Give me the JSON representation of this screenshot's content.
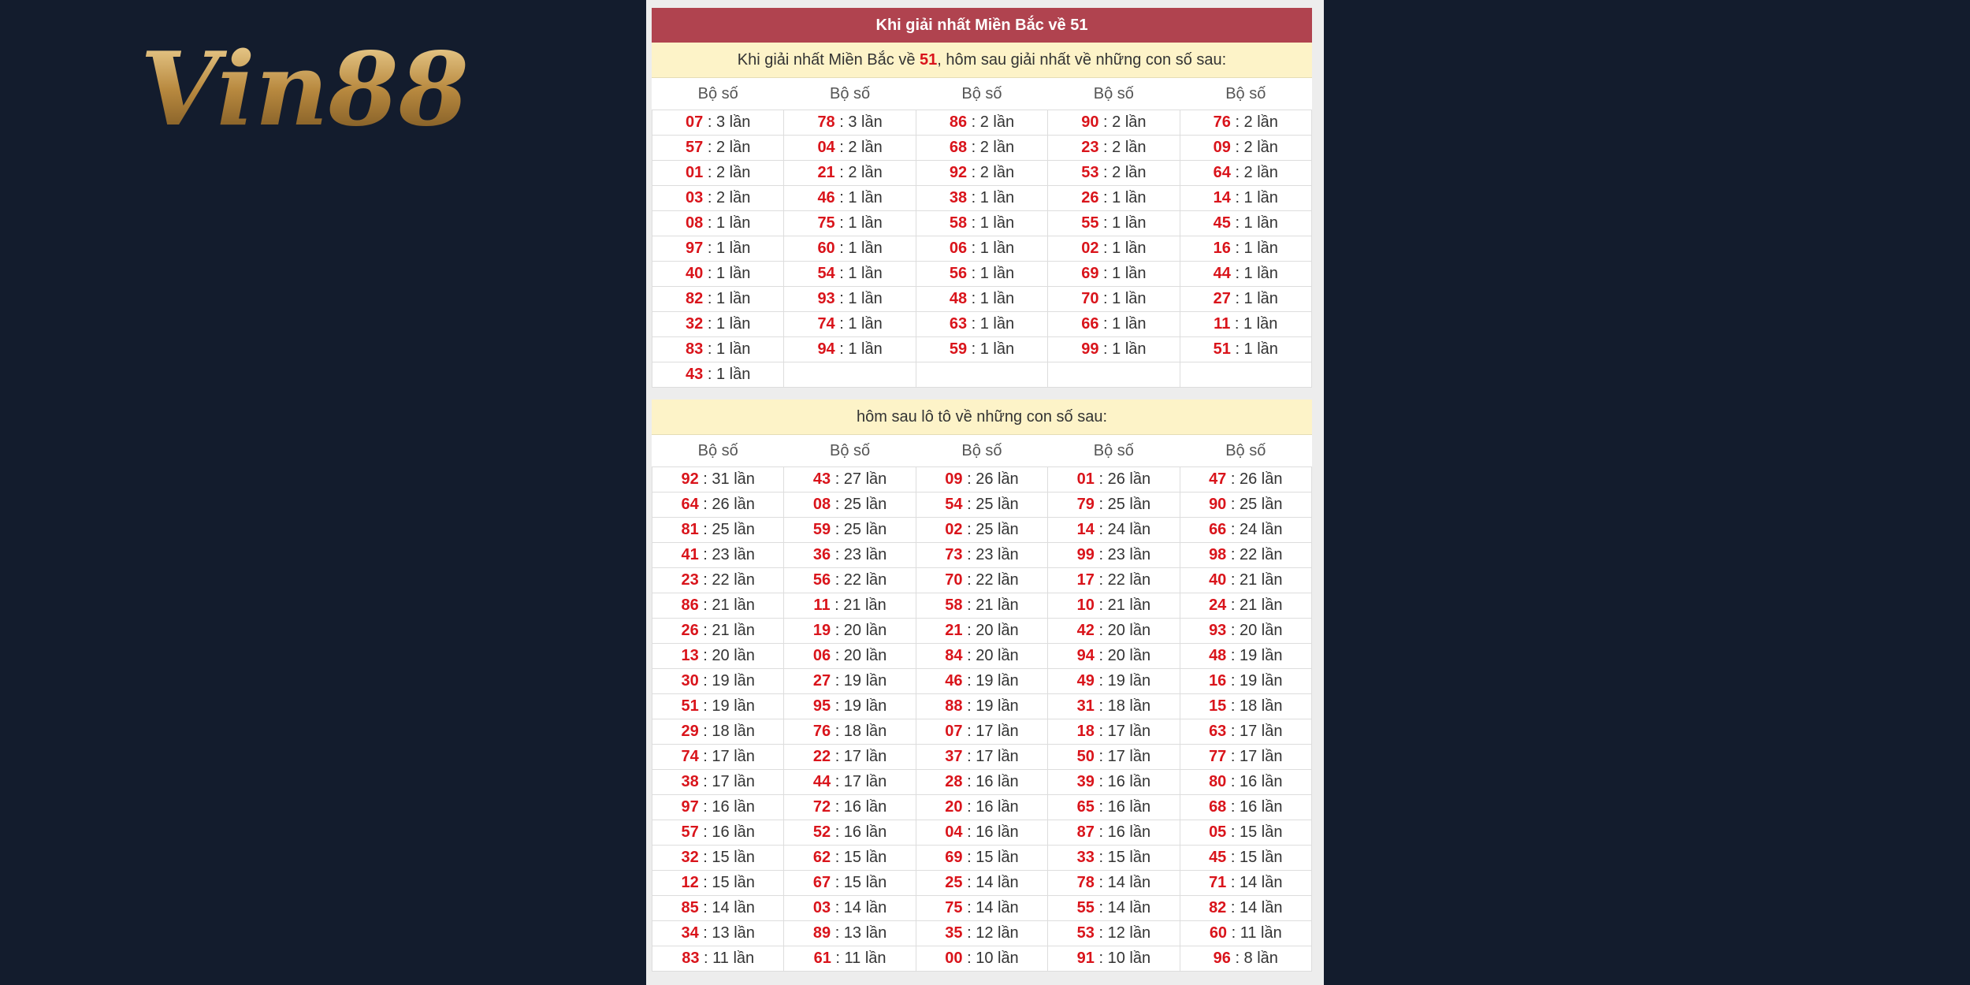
{
  "logo": {
    "text": "Vin88"
  },
  "section1": {
    "title": "Khi giải nhất Miền Bắc về 51",
    "subtitle": [
      "Khi giải nhất Miền Bắc về ",
      "51",
      ", hôm sau giải nhất về những con số sau:"
    ],
    "headers": [
      "Bộ số",
      "Bộ số",
      "Bộ số",
      "Bộ số",
      "Bộ số"
    ],
    "rows": [
      [
        [
          "07",
          ": 3 lần"
        ],
        [
          "78",
          ": 3 lần"
        ],
        [
          "86",
          ": 2 lần"
        ],
        [
          "90",
          ": 2 lần"
        ],
        [
          "76",
          ": 2 lần"
        ]
      ],
      [
        [
          "57",
          ": 2 lần"
        ],
        [
          "04",
          ": 2 lần"
        ],
        [
          "68",
          ": 2 lần"
        ],
        [
          "23",
          ": 2 lần"
        ],
        [
          "09",
          ": 2 lần"
        ]
      ],
      [
        [
          "01",
          ": 2 lần"
        ],
        [
          "21",
          ": 2 lần"
        ],
        [
          "92",
          ": 2 lần"
        ],
        [
          "53",
          ": 2 lần"
        ],
        [
          "64",
          ": 2 lần"
        ]
      ],
      [
        [
          "03",
          ": 2 lần"
        ],
        [
          "46",
          ": 1 lần"
        ],
        [
          "38",
          ": 1 lần"
        ],
        [
          "26",
          ": 1 lần"
        ],
        [
          "14",
          ": 1 lần"
        ]
      ],
      [
        [
          "08",
          ": 1 lần"
        ],
        [
          "75",
          ": 1 lần"
        ],
        [
          "58",
          ": 1 lần"
        ],
        [
          "55",
          ": 1 lần"
        ],
        [
          "45",
          ": 1 lần"
        ]
      ],
      [
        [
          "97",
          ": 1 lần"
        ],
        [
          "60",
          ": 1 lần"
        ],
        [
          "06",
          ": 1 lần"
        ],
        [
          "02",
          ": 1 lần"
        ],
        [
          "16",
          ": 1 lần"
        ]
      ],
      [
        [
          "40",
          ": 1 lần"
        ],
        [
          "54",
          ": 1 lần"
        ],
        [
          "56",
          ": 1 lần"
        ],
        [
          "69",
          ": 1 lần"
        ],
        [
          "44",
          ": 1 lần"
        ]
      ],
      [
        [
          "82",
          ": 1 lần"
        ],
        [
          "93",
          ": 1 lần"
        ],
        [
          "48",
          ": 1 lần"
        ],
        [
          "70",
          ": 1 lần"
        ],
        [
          "27",
          ": 1 lần"
        ]
      ],
      [
        [
          "32",
          ": 1 lần"
        ],
        [
          "74",
          ": 1 lần"
        ],
        [
          "63",
          ": 1 lần"
        ],
        [
          "66",
          ": 1 lần"
        ],
        [
          "11",
          ": 1 lần"
        ]
      ],
      [
        [
          "83",
          ": 1 lần"
        ],
        [
          "94",
          ": 1 lần"
        ],
        [
          "59",
          ": 1 lần"
        ],
        [
          "99",
          ": 1 lần"
        ],
        [
          "51",
          ": 1 lần"
        ]
      ],
      [
        [
          "43",
          ": 1 lần"
        ],
        null,
        null,
        null,
        null
      ]
    ]
  },
  "section2": {
    "subtitle": "hôm sau lô tô về những con số sau:",
    "headers": [
      "Bộ số",
      "Bộ số",
      "Bộ số",
      "Bộ số",
      "Bộ số"
    ],
    "rows": [
      [
        [
          "92",
          ": 31 lần"
        ],
        [
          "43",
          ": 27 lần"
        ],
        [
          "09",
          ": 26 lần"
        ],
        [
          "01",
          ": 26 lần"
        ],
        [
          "47",
          ": 26 lần"
        ]
      ],
      [
        [
          "64",
          ": 26 lần"
        ],
        [
          "08",
          ": 25 lần"
        ],
        [
          "54",
          ": 25 lần"
        ],
        [
          "79",
          ": 25 lần"
        ],
        [
          "90",
          ": 25 lần"
        ]
      ],
      [
        [
          "81",
          ": 25 lần"
        ],
        [
          "59",
          ": 25 lần"
        ],
        [
          "02",
          ": 25 lần"
        ],
        [
          "14",
          ": 24 lần"
        ],
        [
          "66",
          ": 24 lần"
        ]
      ],
      [
        [
          "41",
          ": 23 lần"
        ],
        [
          "36",
          ": 23 lần"
        ],
        [
          "73",
          ": 23 lần"
        ],
        [
          "99",
          ": 23 lần"
        ],
        [
          "98",
          ": 22 lần"
        ]
      ],
      [
        [
          "23",
          ": 22 lần"
        ],
        [
          "56",
          ": 22 lần"
        ],
        [
          "70",
          ": 22 lần"
        ],
        [
          "17",
          ": 22 lần"
        ],
        [
          "40",
          ": 21 lần"
        ]
      ],
      [
        [
          "86",
          ": 21 lần"
        ],
        [
          "11",
          ": 21 lần"
        ],
        [
          "58",
          ": 21 lần"
        ],
        [
          "10",
          ": 21 lần"
        ],
        [
          "24",
          ": 21 lần"
        ]
      ],
      [
        [
          "26",
          ": 21 lần"
        ],
        [
          "19",
          ": 20 lần"
        ],
        [
          "21",
          ": 20 lần"
        ],
        [
          "42",
          ": 20 lần"
        ],
        [
          "93",
          ": 20 lần"
        ]
      ],
      [
        [
          "13",
          ": 20 lần"
        ],
        [
          "06",
          ": 20 lần"
        ],
        [
          "84",
          ": 20 lần"
        ],
        [
          "94",
          ": 20 lần"
        ],
        [
          "48",
          ": 19 lần"
        ]
      ],
      [
        [
          "30",
          ": 19 lần"
        ],
        [
          "27",
          ": 19 lần"
        ],
        [
          "46",
          ": 19 lần"
        ],
        [
          "49",
          ": 19 lần"
        ],
        [
          "16",
          ": 19 lần"
        ]
      ],
      [
        [
          "51",
          ": 19 lần"
        ],
        [
          "95",
          ": 19 lần"
        ],
        [
          "88",
          ": 19 lần"
        ],
        [
          "31",
          ": 18 lần"
        ],
        [
          "15",
          ": 18 lần"
        ]
      ],
      [
        [
          "29",
          ": 18 lần"
        ],
        [
          "76",
          ": 18 lần"
        ],
        [
          "07",
          ": 17 lần"
        ],
        [
          "18",
          ": 17 lần"
        ],
        [
          "63",
          ": 17 lần"
        ]
      ],
      [
        [
          "74",
          ": 17 lần"
        ],
        [
          "22",
          ": 17 lần"
        ],
        [
          "37",
          ": 17 lần"
        ],
        [
          "50",
          ": 17 lần"
        ],
        [
          "77",
          ": 17 lần"
        ]
      ],
      [
        [
          "38",
          ": 17 lần"
        ],
        [
          "44",
          ": 17 lần"
        ],
        [
          "28",
          ": 16 lần"
        ],
        [
          "39",
          ": 16 lần"
        ],
        [
          "80",
          ": 16 lần"
        ]
      ],
      [
        [
          "97",
          ": 16 lần"
        ],
        [
          "72",
          ": 16 lần"
        ],
        [
          "20",
          ": 16 lần"
        ],
        [
          "65",
          ": 16 lần"
        ],
        [
          "68",
          ": 16 lần"
        ]
      ],
      [
        [
          "57",
          ": 16 lần"
        ],
        [
          "52",
          ": 16 lần"
        ],
        [
          "04",
          ": 16 lần"
        ],
        [
          "87",
          ": 16 lần"
        ],
        [
          "05",
          ": 15 lần"
        ]
      ],
      [
        [
          "32",
          ": 15 lần"
        ],
        [
          "62",
          ": 15 lần"
        ],
        [
          "69",
          ": 15 lần"
        ],
        [
          "33",
          ": 15 lần"
        ],
        [
          "45",
          ": 15 lần"
        ]
      ],
      [
        [
          "12",
          ": 15 lần"
        ],
        [
          "67",
          ": 15 lần"
        ],
        [
          "25",
          ": 14 lần"
        ],
        [
          "78",
          ": 14 lần"
        ],
        [
          "71",
          ": 14 lần"
        ]
      ],
      [
        [
          "85",
          ": 14 lần"
        ],
        [
          "03",
          ": 14 lần"
        ],
        [
          "75",
          ": 14 lần"
        ],
        [
          "55",
          ": 14 lần"
        ],
        [
          "82",
          ": 14 lần"
        ]
      ],
      [
        [
          "34",
          ": 13 lần"
        ],
        [
          "89",
          ": 13 lần"
        ],
        [
          "35",
          ": 12 lần"
        ],
        [
          "53",
          ": 12 lần"
        ],
        [
          "60",
          ": 11 lần"
        ]
      ],
      [
        [
          "83",
          ": 11 lần"
        ],
        [
          "61",
          ": 11 lần"
        ],
        [
          "00",
          ": 10 lần"
        ],
        [
          "91",
          ": 10 lần"
        ],
        [
          "96",
          ": 8 lần"
        ]
      ]
    ]
  }
}
